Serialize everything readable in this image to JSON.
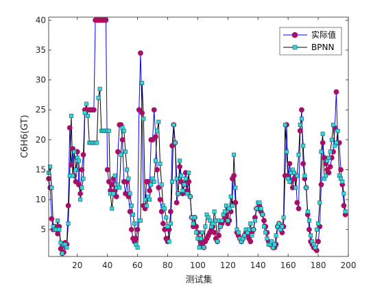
{
  "chart_data": {
    "type": "line",
    "xlabel": "测试集",
    "ylabel": "C6H6(GT)",
    "xlim": [
      1,
      200
    ],
    "ylim": [
      0.5,
      40.5
    ],
    "xticks": [
      20,
      40,
      60,
      80,
      100,
      120,
      140,
      160,
      180,
      200
    ],
    "yticks": [
      5,
      10,
      15,
      20,
      25,
      30,
      35,
      40
    ],
    "grid": false,
    "legend_position": "top-right",
    "colors": {
      "actual_line": "#0000ff",
      "actual_marker_fill": "#a0106f",
      "bpnn_line": "#000000",
      "bpnn_marker_fill": "#30d8d8",
      "axis": "#262626"
    },
    "series": [
      {
        "name": "实际值",
        "marker": "circle",
        "values": [
          13.5,
          12.0,
          6.8,
          5.0,
          5.5,
          5.0,
          4.3,
          5.5,
          1.8,
          1.0,
          1.2,
          2.8,
          2.5,
          9.0,
          22.0,
          15.8,
          18.5,
          14.0,
          13.0,
          18.0,
          12.5,
          11.0,
          15.0,
          17.5,
          25.0,
          25.0,
          25.0,
          25.0,
          25.0,
          25.0,
          25.0,
          40.0,
          40.0,
          40.0,
          40.0,
          40.0,
          40.0,
          40.0,
          40.0,
          15.0,
          13.0,
          11.5,
          12.5,
          13.5,
          11.5,
          10.5,
          18.0,
          22.5,
          22.5,
          20.0,
          13.0,
          11.0,
          13.0,
          10.5,
          8.0,
          5.0,
          3.5,
          3.0,
          3.5,
          5.0,
          25.0,
          34.5,
          24.5,
          9.0,
          8.5,
          13.0,
          13.0,
          11.5,
          20.0,
          20.0,
          25.0,
          20.5,
          15.0,
          12.0,
          10.0,
          8.0,
          6.0,
          5.0,
          3.5,
          3.0,
          5.0,
          8.0,
          19.0,
          22.5,
          19.5,
          9.5,
          11.0,
          15.5,
          13.0,
          11.0,
          12.5,
          14.5,
          11.5,
          13.0,
          10.5,
          7.0,
          5.5,
          7.0,
          5.5,
          4.5,
          3.5,
          3.0,
          2.5,
          2.0,
          3.0,
          3.5,
          4.0,
          4.5,
          5.0,
          5.5,
          4.5,
          3.5,
          3.0,
          4.0,
          5.5,
          6.0,
          6.5,
          7.0,
          7.5,
          6.0,
          6.5,
          8.0,
          13.5,
          14.0,
          9.5,
          4.5,
          4.0,
          3.5,
          3.0,
          3.5,
          4.0,
          4.5,
          4.0,
          3.5,
          3.0,
          4.5,
          5.0,
          7.0,
          8.5,
          8.5,
          9.0,
          8.0,
          7.5,
          6.5,
          5.5,
          4.5,
          3.0,
          2.5,
          2.5,
          2.0,
          2.0,
          2.5,
          5.5,
          6.0,
          5.5,
          4.5,
          5.5,
          14.0,
          22.5,
          14.0,
          16.0,
          13.0,
          12.0,
          13.5,
          14.0,
          9.5,
          8.5,
          21.5,
          25.0,
          16.0,
          13.5,
          12.0,
          7.5,
          5.0,
          3.0,
          2.5,
          2.0,
          1.8,
          1.5,
          3.0,
          5.5,
          12.5,
          19.5,
          17.0,
          16.0,
          15.0,
          14.5,
          15.5,
          17.0,
          18.0,
          22.0,
          28.0,
          19.5,
          19.5,
          15.0,
          12.5,
          9.0,
          7.5
        ]
      },
      {
        "name": "BPNN",
        "marker": "square",
        "values": [
          14.5,
          15.5,
          12.0,
          5.5,
          5.0,
          5.0,
          6.5,
          5.0,
          2.8,
          1.0,
          2.5,
          2.5,
          2.0,
          6.0,
          14.0,
          24.0,
          14.0,
          18.0,
          15.0,
          17.0,
          16.5,
          10.0,
          12.0,
          13.5,
          24.5,
          26.0,
          24.0,
          19.5,
          19.5,
          19.5,
          19.5,
          19.5,
          19.5,
          27.0,
          28.5,
          21.5,
          21.5,
          21.5,
          21.5,
          21.5,
          21.5,
          11.0,
          8.5,
          11.0,
          14.0,
          12.0,
          12.5,
          12.0,
          17.5,
          22.0,
          21.5,
          18.0,
          15.0,
          13.5,
          11.0,
          9.0,
          7.5,
          6.0,
          2.5,
          2.0,
          6.5,
          6.5,
          29.5,
          23.5,
          10.0,
          9.0,
          10.5,
          10.0,
          12.5,
          13.5,
          13.0,
          16.5,
          21.5,
          23.0,
          16.0,
          12.5,
          9.0,
          8.5,
          7.0,
          5.5,
          3.0,
          6.0,
          13.0,
          22.5,
          19.5,
          13.5,
          11.0,
          16.5,
          14.0,
          11.5,
          12.5,
          13.5,
          11.0,
          14.5,
          10.5,
          7.0,
          6.0,
          7.0,
          4.5,
          3.5,
          2.0,
          3.5,
          4.5,
          2.0,
          5.5,
          7.5,
          7.0,
          6.5,
          5.5,
          6.0,
          8.0,
          6.5,
          3.0,
          6.5,
          5.5,
          6.5,
          7.5,
          8.0,
          9.0,
          6.5,
          8.5,
          10.5,
          9.0,
          17.5,
          12.0,
          5.0,
          4.5,
          3.5,
          3.0,
          3.5,
          4.0,
          5.0,
          4.5,
          5.0,
          6.0,
          4.0,
          5.0,
          6.5,
          8.5,
          9.5,
          9.5,
          8.5,
          7.5,
          5.5,
          4.5,
          3.5,
          2.5,
          2.5,
          3.0,
          2.0,
          2.5,
          4.0,
          5.5,
          6.0,
          5.0,
          5.5,
          7.0,
          22.5,
          18.0,
          13.5,
          13.0,
          14.5,
          15.0,
          14.5,
          12.0,
          14.0,
          17.5,
          22.5,
          23.5,
          19.0,
          14.0,
          12.0,
          8.0,
          6.5,
          4.0,
          3.0,
          2.5,
          2.0,
          5.0,
          6.0,
          9.5,
          18.0,
          21.0,
          13.5,
          14.0,
          16.5,
          17.0,
          18.0,
          20.0,
          22.5,
          19.0,
          19.5,
          21.5,
          14.0,
          13.5,
          13.0,
          11.0,
          8.0
        ]
      }
    ]
  }
}
